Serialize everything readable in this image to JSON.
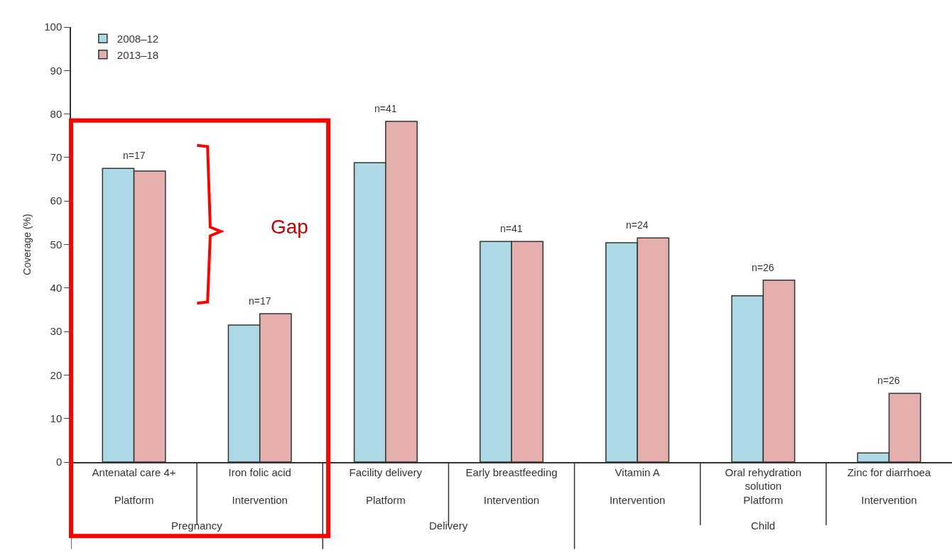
{
  "chart_data": {
    "type": "bar",
    "ylabel": "Coverage (%)",
    "categories": [
      "Antenatal care 4+\n\nPlatform",
      "Iron folic acid\n\nIntervention",
      "Facility delivery\n\nPlatform",
      "Early breastfeeding\n\nIntervention",
      "Vitamin A\n\nIntervention",
      "Oral rehydration\nsolution\nPlatform",
      "Zinc for diarrhoea\n\nIntervention"
    ],
    "series": [
      {
        "name": "2008–12",
        "color": "#add8e6",
        "values": [
          67.5,
          31.5,
          68.8,
          50.7,
          50.4,
          38.2,
          2.1
        ]
      },
      {
        "name": "2013–18",
        "color": "#e4afac",
        "values": [
          66.9,
          34.1,
          78.3,
          50.7,
          51.5,
          41.8,
          15.8
        ]
      }
    ],
    "ylim": [
      0,
      100
    ],
    "yticks": [
      0,
      10,
      20,
      30,
      40,
      50,
      60,
      70,
      80,
      90,
      100
    ],
    "legend": "top left",
    "annotations": [
      "n=17",
      "n=17",
      "n=41",
      "n=41",
      "n=24",
      "n=26",
      "n=26",
      "Pregnancy",
      "Delivery",
      "Child",
      "Gap"
    ]
  }
}
